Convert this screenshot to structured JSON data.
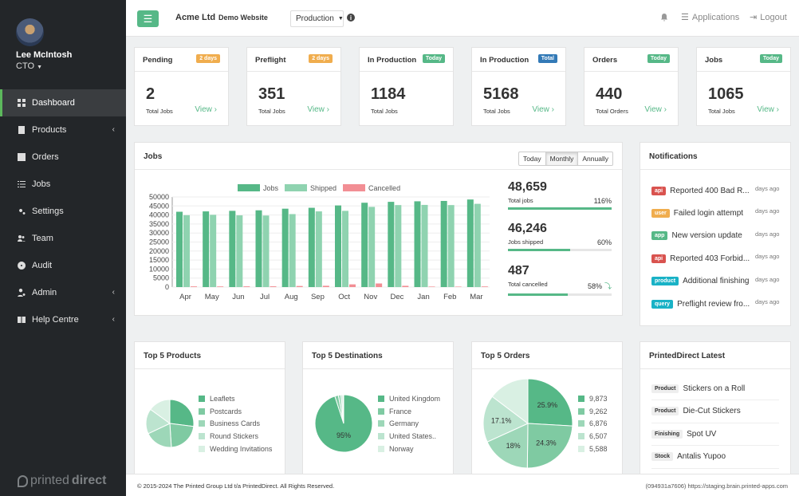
{
  "user": {
    "name": "Lee McIntosh",
    "role": "CTO"
  },
  "sidebar": {
    "items": [
      {
        "label": "Dashboard",
        "icon": "grid-icon",
        "active": true
      },
      {
        "label": "Products",
        "icon": "book-icon",
        "expandable": true
      },
      {
        "label": "Orders",
        "icon": "list-icon"
      },
      {
        "label": "Jobs",
        "icon": "tasks-icon"
      },
      {
        "label": "Settings",
        "icon": "gears-icon"
      },
      {
        "label": "Team",
        "icon": "users-icon"
      },
      {
        "label": "Audit",
        "icon": "disc-icon"
      },
      {
        "label": "Admin",
        "icon": "user-cog-icon",
        "expandable": true
      },
      {
        "label": "Help Centre",
        "icon": "help-book-icon",
        "expandable": true
      }
    ],
    "logo": {
      "light": "printed",
      "bold": "direct"
    }
  },
  "header": {
    "company": "Acme Ltd",
    "site": "Demo Website",
    "environment": "Production",
    "applications": "Applications",
    "logout": "Logout"
  },
  "stats": [
    {
      "title": "Pending",
      "badge": "2 days",
      "badge_color": "#f0ad4e",
      "value": "2",
      "label": "Total Jobs",
      "view": "View ›"
    },
    {
      "title": "Preflight",
      "badge": "2 days",
      "badge_color": "#f0ad4e",
      "value": "351",
      "label": "Total Jobs",
      "view": "View ›"
    },
    {
      "title": "In Production",
      "badge": "Today",
      "badge_color": "#56b887",
      "value": "1184",
      "label": "Total Jobs",
      "view": ""
    },
    {
      "title": "In Production",
      "badge": "Total",
      "badge_color": "#337ab7",
      "value": "5168",
      "label": "Total Jobs",
      "view": "View ›"
    },
    {
      "title": "Orders",
      "badge": "Today",
      "badge_color": "#56b887",
      "value": "440",
      "label": "Total Orders",
      "view": "View ›"
    },
    {
      "title": "Jobs",
      "badge": "Today",
      "badge_color": "#56b887",
      "value": "1065",
      "label": "Total Jobs",
      "view": "View ›"
    }
  ],
  "jobs_panel": {
    "title": "Jobs",
    "tabs": [
      "Today",
      "Monthly",
      "Annually"
    ],
    "active_tab": "Monthly",
    "kpis": [
      {
        "value": "48,659",
        "label": "Total jobs",
        "pct": "116%",
        "fill": 1.0
      },
      {
        "value": "46,246",
        "label": "Jobs shipped",
        "pct": "60%",
        "fill": 0.6
      },
      {
        "value": "487",
        "label": "Total cancelled",
        "pct": "58%",
        "fill": 0.58,
        "trend": "down"
      }
    ]
  },
  "chart_data": {
    "type": "bar",
    "categories": [
      "Apr",
      "May",
      "Jun",
      "Jul",
      "Aug",
      "Sep",
      "Oct",
      "Nov",
      "Dec",
      "Jan",
      "Feb",
      "Mar"
    ],
    "series": [
      {
        "name": "Jobs",
        "color": "#56b887",
        "values": [
          41800,
          42000,
          42300,
          42600,
          43500,
          44000,
          45300,
          46800,
          47300,
          47600,
          47800,
          48600
        ]
      },
      {
        "name": "Shipped",
        "color": "#8fd3b0",
        "values": [
          39900,
          40100,
          39800,
          39700,
          40500,
          42000,
          42300,
          44500,
          45500,
          45600,
          45500,
          46200
        ]
      },
      {
        "name": "Cancelled",
        "color": "#f28e94",
        "values": [
          380,
          350,
          400,
          420,
          600,
          720,
          1500,
          2000,
          700,
          280,
          250,
          350
        ]
      }
    ],
    "yticks": [
      0,
      5000,
      10000,
      15000,
      20000,
      25000,
      30000,
      35000,
      40000,
      45000,
      50000
    ],
    "ylim": [
      0,
      50000
    ],
    "legend": "top-center"
  },
  "notifications": {
    "title": "Notifications",
    "items": [
      {
        "tag": "api",
        "color": "#d9534f",
        "text": "Reported 400 Bad R...",
        "time": "days ago"
      },
      {
        "tag": "user",
        "color": "#f0ad4e",
        "text": "Failed login attempt",
        "time": "days ago"
      },
      {
        "tag": "app",
        "color": "#56b887",
        "text": "New version update",
        "time": "days ago"
      },
      {
        "tag": "api",
        "color": "#d9534f",
        "text": "Reported 403 Forbid...",
        "time": "days ago"
      },
      {
        "tag": "product",
        "color": "#19b2c6",
        "text": "Additional finishing",
        "time": "days ago"
      },
      {
        "tag": "query",
        "color": "#19b2c6",
        "text": "Preflight review fro...",
        "time": "days ago"
      }
    ]
  },
  "top_products": {
    "title": "Top 5 Products",
    "legend": [
      "Leaflets",
      "Postcards",
      "Business Cards",
      "Round Stickers",
      "Wedding Invitations"
    ],
    "values": [
      27,
      22,
      19,
      17,
      15
    ],
    "colors": [
      "#56b887",
      "#7fcaa2",
      "#9dd7b8",
      "#bce4cf",
      "#d9f0e3"
    ]
  },
  "top_destinations": {
    "title": "Top 5 Destinations",
    "legend": [
      "United Kingdom",
      "France",
      "Germany",
      "United States..",
      "Norway"
    ],
    "values": [
      95,
      2,
      1.5,
      1,
      0.5
    ],
    "label": "95%",
    "colors": [
      "#56b887",
      "#7fcaa2",
      "#9dd7b8",
      "#bce4cf",
      "#d9f0e3"
    ]
  },
  "top_orders": {
    "title": "Top 5 Orders",
    "legend": [
      "9,873",
      "9,262",
      "6,876",
      "6,507",
      "5,588"
    ],
    "values": [
      25.9,
      24.3,
      18,
      17.1,
      14.7
    ],
    "labels": [
      "25.9%",
      "24.3%",
      "18%",
      "17.1%",
      ""
    ],
    "colors": [
      "#56b887",
      "#7fcaa2",
      "#9dd7b8",
      "#bce4cf",
      "#d9f0e3"
    ]
  },
  "latest": {
    "title": "PrintedDirect Latest",
    "items": [
      {
        "tag": "Product",
        "text": "Stickers on a Roll"
      },
      {
        "tag": "Product",
        "text": "Die-Cut Stickers"
      },
      {
        "tag": "Finishing",
        "text": "Spot UV"
      },
      {
        "tag": "Stock",
        "text": "Antalis Yupoo"
      }
    ]
  },
  "footer": {
    "left": "© 2015-2024 The Printed Group Ltd t/a PrintedDirect. All Rights Reserved.",
    "right": "(094931a7606) https://staging.brain.printed-apps.com"
  }
}
